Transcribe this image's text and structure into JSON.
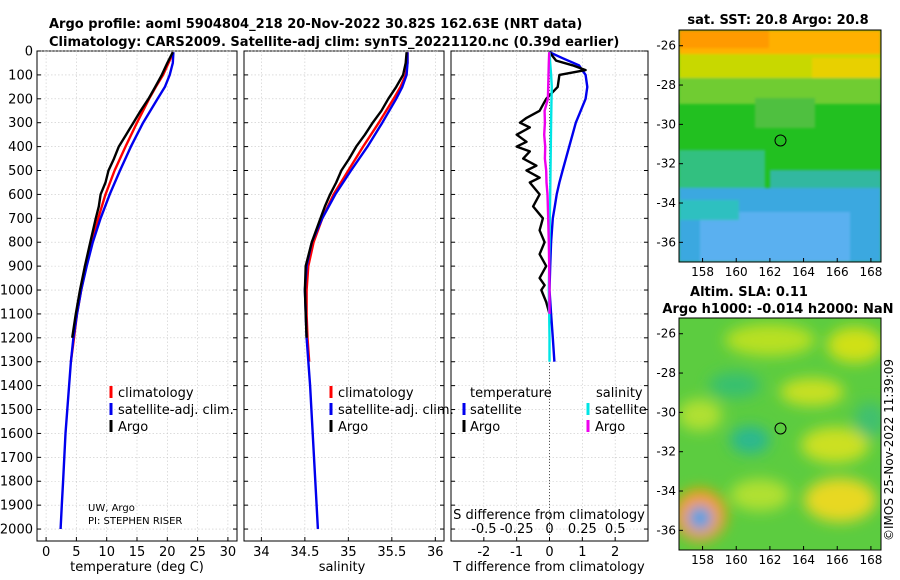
{
  "header": {
    "title_line1": "Argo profile: aoml 5904804_218 20-Nov-2022 30.82S 162.63E (NRT data)",
    "title_line2": "Climatology: CARS2009. Satellite-adj clim: synTS_20221120.nc (0.39d earlier)"
  },
  "colors": {
    "climatology": "#ff0000",
    "satellite_adj": "#0000ee",
    "argo": "#000000",
    "sat_temp_diff": "#0000ee",
    "sat_sal_diff": "#00e5e5",
    "argo_sal_diff": "#ee00ee"
  },
  "credits": {
    "institution": "UW, Argo",
    "pi": "PI: STEPHEN RISER",
    "stamp": "©IMOS 25-Nov-2022 11:39:09"
  },
  "depth_axis": {
    "ylim": [
      2050,
      0
    ],
    "ticks": [
      0,
      100,
      200,
      300,
      400,
      500,
      600,
      700,
      800,
      900,
      1000,
      1100,
      1200,
      1300,
      1400,
      1500,
      1600,
      1700,
      1800,
      1900,
      2000
    ]
  },
  "chart_data": [
    {
      "type": "line",
      "id": "temperature",
      "xlabel": "temperature (deg C)",
      "ylabel": "",
      "xlim": [
        -1.5,
        31.5
      ],
      "xticks": [
        0,
        5,
        10,
        15,
        20,
        25,
        30
      ],
      "grid": true,
      "legend": [
        "climatology",
        "satellite-adj. clim.",
        "Argo"
      ],
      "series": [
        {
          "name": "climatology",
          "color": "#ff0000",
          "depth": [
            5,
            50,
            100,
            150,
            200,
            300,
            400,
            500,
            600,
            700,
            800,
            900,
            1000,
            1100,
            1200,
            1300
          ],
          "values": [
            21.0,
            20.2,
            19.3,
            18.1,
            17.0,
            15.0,
            13.1,
            11.3,
            9.8,
            8.6,
            7.6,
            6.6,
            5.8,
            5.1,
            4.6,
            4.1
          ]
        },
        {
          "name": "satellite-adj. clim.",
          "color": "#0000ee",
          "depth": [
            5,
            50,
            100,
            150,
            200,
            300,
            400,
            500,
            600,
            700,
            800,
            900,
            1000,
            1100,
            1200,
            1300,
            1400,
            1500,
            1600,
            1700,
            1800,
            1900,
            2000
          ],
          "values": [
            21.0,
            20.9,
            20.4,
            19.6,
            18.4,
            16.0,
            14.0,
            12.2,
            10.5,
            9.0,
            7.7,
            6.7,
            5.8,
            5.1,
            4.5,
            4.1,
            3.8,
            3.5,
            3.2,
            3.0,
            2.8,
            2.6,
            2.4
          ]
        },
        {
          "name": "Argo",
          "color": "#000000",
          "depth": [
            5,
            50,
            100,
            150,
            200,
            250,
            300,
            350,
            400,
            450,
            500,
            550,
            600,
            650,
            700,
            800,
            900,
            1000,
            1100,
            1200
          ],
          "values": [
            20.9,
            20.0,
            19.1,
            18.0,
            16.9,
            15.6,
            14.4,
            13.2,
            12.0,
            11.2,
            10.3,
            9.8,
            9.0,
            8.7,
            8.2,
            7.3,
            6.4,
            5.6,
            4.9,
            4.3
          ]
        }
      ]
    },
    {
      "type": "line",
      "id": "salinity",
      "xlabel": "salinity",
      "ylabel": "",
      "xlim": [
        33.8,
        36.1
      ],
      "xticks": [
        34,
        34.5,
        35,
        35.5,
        36
      ],
      "grid": true,
      "legend": [
        "climatology",
        "satellite-adj. clim.",
        "Argo"
      ],
      "series": [
        {
          "name": "climatology",
          "color": "#ff0000",
          "depth": [
            5,
            50,
            100,
            150,
            200,
            300,
            400,
            500,
            600,
            700,
            800,
            900,
            1000,
            1100,
            1200,
            1300
          ],
          "values": [
            35.68,
            35.68,
            35.66,
            35.6,
            35.52,
            35.35,
            35.17,
            35.0,
            34.83,
            34.7,
            34.6,
            34.54,
            34.52,
            34.52,
            34.53,
            34.55
          ]
        },
        {
          "name": "satellite-adj. clim.",
          "color": "#0000ee",
          "depth": [
            5,
            50,
            100,
            150,
            200,
            300,
            400,
            500,
            600,
            700,
            800,
            900,
            1000,
            1200,
            1400,
            1600,
            1800,
            2000
          ],
          "values": [
            35.68,
            35.68,
            35.67,
            35.62,
            35.55,
            35.39,
            35.22,
            35.03,
            34.85,
            34.7,
            34.58,
            34.52,
            34.5,
            34.52,
            34.56,
            34.59,
            34.62,
            34.65
          ]
        },
        {
          "name": "Argo",
          "color": "#000000",
          "depth": [
            5,
            50,
            100,
            150,
            200,
            250,
            300,
            350,
            400,
            450,
            500,
            550,
            600,
            650,
            700,
            800,
            900,
            1000,
            1100,
            1200
          ],
          "values": [
            35.67,
            35.66,
            35.63,
            35.55,
            35.46,
            35.38,
            35.28,
            35.19,
            35.09,
            35.01,
            34.92,
            34.86,
            34.79,
            34.73,
            34.68,
            34.58,
            34.51,
            34.5,
            34.51,
            34.52
          ]
        }
      ]
    },
    {
      "type": "line",
      "id": "differences",
      "xlabel": "T difference from climatology",
      "xlabel_top": "S difference from climatology",
      "xlim": [
        -3,
        3
      ],
      "xticks": [
        -2,
        -1,
        0,
        1,
        2
      ],
      "xticks_top": [
        -0.5,
        -0.25,
        0,
        0.25,
        0.5
      ],
      "xticklabels_top": [
        "-0.5",
        "-0.25",
        "0",
        "0.25",
        "0.5"
      ],
      "grid": true,
      "legend_temperature_title": "temperature",
      "legend_salinity_title": "salinity",
      "legend_temperature": [
        "satellite",
        "Argo"
      ],
      "legend_salinity": [
        "satellite",
        "Argo"
      ],
      "series": [
        {
          "name": "satellite T diff",
          "color": "#0000ee",
          "depth": [
            5,
            30,
            60,
            100,
            150,
            200,
            250,
            300,
            350,
            400,
            450,
            500,
            550,
            600,
            650,
            700,
            800,
            900,
            1000,
            1100,
            1200,
            1300
          ],
          "values": [
            0.0,
            0.4,
            0.9,
            1.1,
            1.15,
            1.1,
            0.95,
            0.8,
            0.7,
            0.6,
            0.5,
            0.4,
            0.3,
            0.22,
            0.16,
            0.1,
            0.05,
            0.02,
            0.0,
            0.05,
            0.1,
            0.15
          ]
        },
        {
          "name": "Argo T diff",
          "color": "#000000",
          "depth": [
            5,
            40,
            60,
            80,
            100,
            150,
            200,
            250,
            280,
            300,
            320,
            350,
            380,
            400,
            420,
            450,
            480,
            500,
            530,
            550,
            600,
            650,
            700,
            750,
            800,
            850,
            900,
            950,
            980,
            1000,
            1050,
            1100
          ],
          "values": [
            0.0,
            0.2,
            0.7,
            1.1,
            0.3,
            0.25,
            -0.1,
            -0.3,
            -0.7,
            -0.9,
            -0.6,
            -1.0,
            -0.7,
            -1.0,
            -0.6,
            -0.8,
            -0.4,
            -0.7,
            -0.3,
            -0.6,
            -0.3,
            -0.5,
            -0.2,
            -0.3,
            -0.15,
            -0.3,
            -0.1,
            -0.3,
            -0.15,
            -0.25,
            -0.1,
            0.0
          ]
        },
        {
          "name": "satellite S diff",
          "color": "#00e5e5",
          "depth": [
            5,
            50,
            100,
            150,
            200,
            300,
            400,
            500,
            600,
            700,
            800,
            900,
            1000,
            1100,
            1200,
            1300
          ],
          "values": [
            0.0,
            0.02,
            0.05,
            0.07,
            0.06,
            0.05,
            0.04,
            0.03,
            0.02,
            0.01,
            0.0,
            -0.01,
            -0.02,
            -0.01,
            0.0,
            0.0
          ]
        },
        {
          "name": "Argo S diff",
          "color": "#ee00ee",
          "depth": [
            5,
            50,
            100,
            150,
            200,
            250,
            300,
            350,
            400,
            450,
            500,
            550,
            600,
            700,
            800,
            900,
            1000,
            1100
          ],
          "values": [
            -0.01,
            -0.02,
            -0.03,
            -0.04,
            -0.05,
            -0.15,
            -0.14,
            -0.16,
            -0.13,
            -0.14,
            -0.1,
            -0.09,
            -0.06,
            -0.04,
            -0.02,
            -0.01,
            0.0,
            0.0
          ]
        }
      ]
    },
    {
      "type": "heatmap",
      "id": "sst_map",
      "title": "sat. SST: 20.8 Argo: 20.8",
      "xlim": [
        156.6,
        168.6
      ],
      "ylim": [
        -37,
        -25.2
      ],
      "xticks": [
        158,
        160,
        162,
        164,
        166,
        168
      ],
      "yticks": [
        -26,
        -28,
        -30,
        -32,
        -34,
        -36
      ],
      "argo_position": [
        162.63,
        -30.82
      ]
    },
    {
      "type": "heatmap",
      "id": "sla_map",
      "title_line1": "Altim. SLA: 0.11",
      "title_line2": "Argo h1000: -0.014 h2000: NaN",
      "xlim": [
        156.6,
        168.6
      ],
      "ylim": [
        -37,
        -25.2
      ],
      "xticks": [
        158,
        160,
        162,
        164,
        166,
        168
      ],
      "yticks": [
        -26,
        -28,
        -30,
        -32,
        -34,
        -36
      ],
      "argo_position": [
        162.63,
        -30.82
      ]
    }
  ]
}
